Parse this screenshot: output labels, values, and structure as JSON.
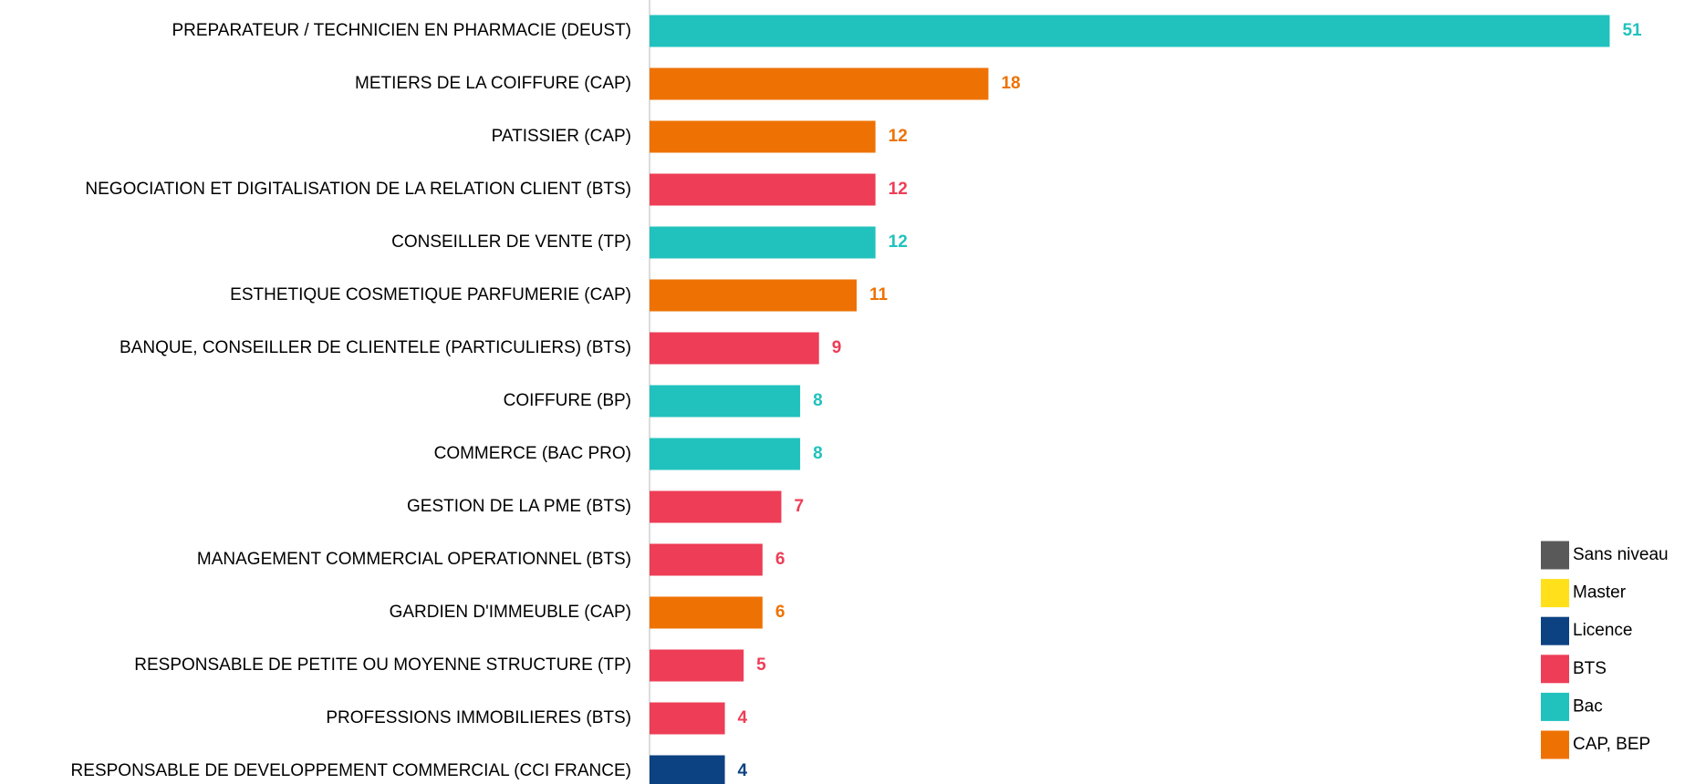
{
  "chart_data": {
    "type": "barh",
    "categories": [
      "PREPARATEUR / TECHNICIEN EN PHARMACIE (DEUST)",
      "METIERS DE LA COIFFURE (CAP)",
      "PATISSIER (CAP)",
      "NEGOCIATION ET DIGITALISATION DE LA RELATION CLIENT (BTS)",
      "CONSEILLER DE VENTE (TP)",
      "ESTHETIQUE COSMETIQUE PARFUMERIE (CAP)",
      "BANQUE, CONSEILLER DE CLIENTELE (PARTICULIERS) (BTS)",
      "COIFFURE (BP)",
      "COMMERCE (BAC PRO)",
      "GESTION DE LA PME (BTS)",
      "MANAGEMENT COMMERCIAL OPERATIONNEL (BTS)",
      "GARDIEN D'IMMEUBLE (CAP)",
      "RESPONSABLE DE PETITE OU MOYENNE STRUCTURE (TP)",
      "PROFESSIONS IMMOBILIERES (BTS)",
      "RESPONSABLE DE DEVELOPPEMENT COMMERCIAL (CCI FRANCE)"
    ],
    "series": [
      {
        "name": "Sans niveau",
        "color": "#595959",
        "values": [
          null,
          null,
          null,
          null,
          null,
          null,
          null,
          null,
          null,
          null,
          null,
          null,
          null,
          null,
          null
        ]
      },
      {
        "name": "Master",
        "color": "#ffe01b",
        "values": [
          null,
          null,
          null,
          null,
          null,
          null,
          null,
          null,
          null,
          null,
          null,
          null,
          null,
          null,
          null
        ]
      },
      {
        "name": "Licence",
        "color": "#0d4282",
        "values": [
          null,
          null,
          null,
          null,
          null,
          null,
          null,
          null,
          null,
          null,
          null,
          null,
          null,
          null,
          4
        ]
      },
      {
        "name": "BTS",
        "color": "#ee3d56",
        "values": [
          null,
          null,
          null,
          12,
          null,
          null,
          9,
          null,
          null,
          7,
          6,
          null,
          5,
          4,
          null
        ]
      },
      {
        "name": "Bac",
        "color": "#21c2bd",
        "values": [
          51,
          null,
          null,
          null,
          12,
          null,
          null,
          8,
          8,
          null,
          null,
          null,
          null,
          null,
          null
        ]
      },
      {
        "name": "CAP, BEP",
        "color": "#ee7203",
        "values": [
          null,
          18,
          12,
          null,
          null,
          11,
          null,
          null,
          null,
          null,
          null,
          6,
          null,
          null,
          null
        ]
      }
    ],
    "xlim": [
      0,
      55
    ]
  }
}
